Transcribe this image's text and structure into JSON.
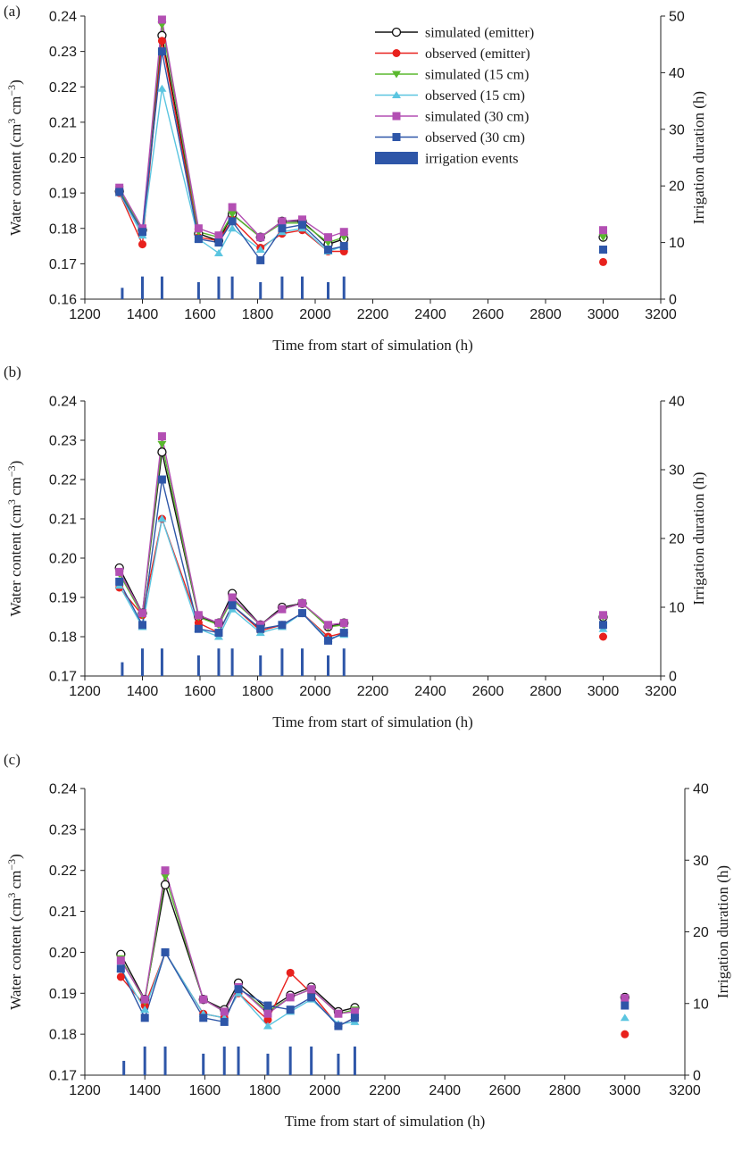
{
  "chart_data": [
    {
      "type": "line",
      "panel_label": "(a)",
      "xlabel": "Time from start of simulation (h)",
      "ylabel": "Water content (cm3 cm−3)",
      "ylabel_parts": {
        "a": "Water content (cm",
        "b": "3",
        "c": " cm",
        "d": "−3",
        "e": ")"
      },
      "y2label": "Irrigation duration (h)",
      "xlim": [
        1200,
        3200
      ],
      "xticks": [
        "1200",
        "1400",
        "1600",
        "1800",
        "2000",
        "2200",
        "2400",
        "2600",
        "2800",
        "3000",
        "3200"
      ],
      "ylim": [
        0.16,
        0.24
      ],
      "yticks": [
        "0.16",
        "0.17",
        "0.18",
        "0.19",
        "0.20",
        "0.21",
        "0.22",
        "0.23",
        "0.24"
      ],
      "y2lim": [
        0,
        50
      ],
      "y2ticks": [
        "0",
        "10",
        "20",
        "30",
        "40",
        "50"
      ],
      "legend_position": "top-right",
      "x": [
        1320,
        1400,
        1468,
        1595,
        1665,
        1712,
        1810,
        1885,
        1955,
        2045,
        2100,
        3000
      ],
      "series": [
        {
          "name": "simulated (emitter)",
          "color": "#111111",
          "marker": "open-circle",
          "values": [
            0.1905,
            0.1795,
            0.2345,
            0.1785,
            0.1765,
            0.184,
            0.1775,
            0.182,
            0.182,
            0.1755,
            0.177,
            0.1775
          ]
        },
        {
          "name": "observed (emitter)",
          "color": "#e8211d",
          "marker": "circle",
          "values": [
            0.19,
            0.1755,
            0.233,
            0.1775,
            0.1765,
            0.1825,
            0.1745,
            0.1785,
            0.1795,
            0.1735,
            0.1735,
            0.1705
          ]
        },
        {
          "name": "simulated (15 cm)",
          "color": "#5ab82e",
          "marker": "triangle-down",
          "values": [
            0.191,
            0.1795,
            0.2375,
            0.179,
            0.1775,
            0.184,
            0.1775,
            0.1815,
            0.1815,
            0.176,
            0.1775,
            0.1775
          ]
        },
        {
          "name": "observed (15 cm)",
          "color": "#5bc5e0",
          "marker": "triangle-up",
          "values": [
            0.19,
            0.178,
            0.2195,
            0.177,
            0.173,
            0.18,
            0.174,
            0.179,
            0.18,
            0.1735,
            0.175,
            0.174
          ]
        },
        {
          "name": "simulated (30 cm)",
          "color": "#b34fb3",
          "marker": "square",
          "values": [
            0.1915,
            0.18,
            0.239,
            0.18,
            0.178,
            0.186,
            0.1775,
            0.182,
            0.1825,
            0.1775,
            0.179,
            0.1795
          ]
        },
        {
          "name": "observed (30 cm)",
          "color": "#2e56a8",
          "marker": "square",
          "values": [
            0.1903,
            0.179,
            0.23,
            0.177,
            0.176,
            0.182,
            0.171,
            0.18,
            0.181,
            0.174,
            0.175,
            0.174
          ]
        }
      ],
      "irrigation": {
        "name": "irrigation events",
        "color": "#2e56a8",
        "x": [
          1330,
          1400,
          1468,
          1595,
          1665,
          1712,
          1810,
          1885,
          1955,
          2045,
          2100
        ],
        "duration_h": [
          2,
          4,
          4,
          3,
          4,
          4,
          3,
          4,
          4,
          3,
          4
        ]
      }
    },
    {
      "type": "line",
      "panel_label": "(b)",
      "xlabel": "Time from start of simulation (h)",
      "ylabel": "Water content (cm3 cm−3)",
      "ylabel_parts": {
        "a": "Water content (cm",
        "b": "3",
        "c": " cm",
        "d": "−3",
        "e": ")"
      },
      "y2label": "Irrigation duration (h)",
      "xlim": [
        1200,
        3200
      ],
      "xticks": [
        "1200",
        "1400",
        "1600",
        "1800",
        "2000",
        "2200",
        "2400",
        "2600",
        "2800",
        "3000",
        "3200"
      ],
      "ylim": [
        0.17,
        0.24
      ],
      "yticks": [
        "0.17",
        "0.18",
        "0.19",
        "0.20",
        "0.21",
        "0.22",
        "0.23",
        "0.24"
      ],
      "y2lim": [
        0,
        40
      ],
      "y2ticks": [
        "0",
        "10",
        "20",
        "30",
        "40"
      ],
      "x": [
        1320,
        1400,
        1468,
        1595,
        1665,
        1712,
        1810,
        1885,
        1955,
        2045,
        2100,
        3000
      ],
      "series": [
        {
          "name": "simulated (emitter)",
          "color": "#111111",
          "marker": "open-circle",
          "values": [
            0.1975,
            0.186,
            0.227,
            0.185,
            0.1835,
            0.191,
            0.183,
            0.1875,
            0.1885,
            0.1825,
            0.1835,
            0.185
          ]
        },
        {
          "name": "observed (emitter)",
          "color": "#e8211d",
          "marker": "circle",
          "values": [
            0.1925,
            0.1855,
            0.21,
            0.1835,
            0.181,
            0.188,
            0.1815,
            0.183,
            0.186,
            0.18,
            0.181,
            0.18
          ]
        },
        {
          "name": "simulated (15 cm)",
          "color": "#5ab82e",
          "marker": "triangle-down",
          "values": [
            0.196,
            0.1855,
            0.229,
            0.185,
            0.183,
            0.1895,
            0.183,
            0.187,
            0.1885,
            0.1825,
            0.183,
            0.185
          ]
        },
        {
          "name": "observed (15 cm)",
          "color": "#5bc5e0",
          "marker": "triangle-up",
          "values": [
            0.193,
            0.1825,
            0.21,
            0.182,
            0.18,
            0.187,
            0.181,
            0.1825,
            0.186,
            0.1795,
            0.1805,
            0.182
          ]
        },
        {
          "name": "simulated (30 cm)",
          "color": "#b34fb3",
          "marker": "square",
          "values": [
            0.1965,
            0.186,
            0.231,
            0.1855,
            0.1835,
            0.19,
            0.183,
            0.187,
            0.1885,
            0.183,
            0.1835,
            0.1855
          ]
        },
        {
          "name": "observed (30 cm)",
          "color": "#2e56a8",
          "marker": "square",
          "values": [
            0.194,
            0.183,
            0.22,
            0.182,
            0.181,
            0.188,
            0.182,
            0.183,
            0.186,
            0.179,
            0.181,
            0.183
          ]
        }
      ],
      "irrigation": {
        "name": "irrigation events",
        "color": "#2e56a8",
        "x": [
          1330,
          1400,
          1468,
          1595,
          1665,
          1712,
          1810,
          1885,
          1955,
          2045,
          2100
        ],
        "duration_h": [
          2,
          4,
          4,
          3,
          4,
          4,
          3,
          4,
          4,
          3,
          4
        ]
      }
    },
    {
      "type": "line",
      "panel_label": "(c)",
      "xlabel": "Time from start of simulation (h)",
      "ylabel": "Water content (cm3 cm−3)",
      "ylabel_parts": {
        "a": "Water content (cm",
        "b": "3",
        "c": " cm",
        "d": "−3",
        "e": ")"
      },
      "y2label": "Irrigation duration (h)",
      "xlim": [
        1200,
        3200
      ],
      "xticks": [
        "1200",
        "1400",
        "1600",
        "1800",
        "2000",
        "2200",
        "2400",
        "2600",
        "2800",
        "3000",
        "3200"
      ],
      "ylim": [
        0.17,
        0.24
      ],
      "yticks": [
        "0.17",
        "0.18",
        "0.19",
        "0.20",
        "0.21",
        "0.22",
        "0.23",
        "0.24"
      ],
      "y2lim": [
        0,
        40
      ],
      "y2ticks": [
        "0",
        "10",
        "20",
        "30",
        "40"
      ],
      "x": [
        1320,
        1400,
        1468,
        1595,
        1665,
        1712,
        1810,
        1885,
        1955,
        2045,
        2100,
        3000
      ],
      "series": [
        {
          "name": "simulated (emitter)",
          "color": "#111111",
          "marker": "open-circle",
          "values": [
            0.1995,
            0.1885,
            0.2165,
            0.1885,
            0.186,
            0.1925,
            0.186,
            0.1895,
            0.1915,
            0.1855,
            0.1865,
            0.189
          ]
        },
        {
          "name": "observed (emitter)",
          "color": "#e8211d",
          "marker": "circle",
          "values": [
            0.194,
            0.187,
            0.2,
            0.185,
            0.184,
            0.19,
            0.1835,
            0.195,
            0.19,
            0.182,
            0.184,
            0.18
          ]
        },
        {
          "name": "simulated (15 cm)",
          "color": "#5ab82e",
          "marker": "triangle-down",
          "values": [
            0.1985,
            0.188,
            0.2185,
            0.1885,
            0.1855,
            0.1915,
            0.1855,
            0.189,
            0.191,
            0.185,
            0.186,
            0.1885
          ]
        },
        {
          "name": "observed (15 cm)",
          "color": "#5bc5e0",
          "marker": "triangle-up",
          "values": [
            0.196,
            0.186,
            0.2,
            0.185,
            0.184,
            0.19,
            0.182,
            0.1855,
            0.1885,
            0.1825,
            0.183,
            0.184
          ]
        },
        {
          "name": "simulated (30 cm)",
          "color": "#b34fb3",
          "marker": "square",
          "values": [
            0.198,
            0.1885,
            0.22,
            0.1885,
            0.1855,
            0.1915,
            0.185,
            0.189,
            0.191,
            0.185,
            0.1855,
            0.1888
          ]
        },
        {
          "name": "observed (30 cm)",
          "color": "#2e56a8",
          "marker": "square",
          "values": [
            0.196,
            0.184,
            0.2,
            0.184,
            0.183,
            0.191,
            0.187,
            0.186,
            0.189,
            0.182,
            0.184,
            0.187
          ]
        }
      ],
      "irrigation": {
        "name": "irrigation events",
        "color": "#2e56a8",
        "x": [
          1330,
          1400,
          1468,
          1595,
          1665,
          1712,
          1810,
          1885,
          1955,
          2045,
          2100
        ],
        "duration_h": [
          2,
          4,
          4,
          3,
          4,
          4,
          3,
          4,
          4,
          3,
          4
        ]
      }
    }
  ]
}
